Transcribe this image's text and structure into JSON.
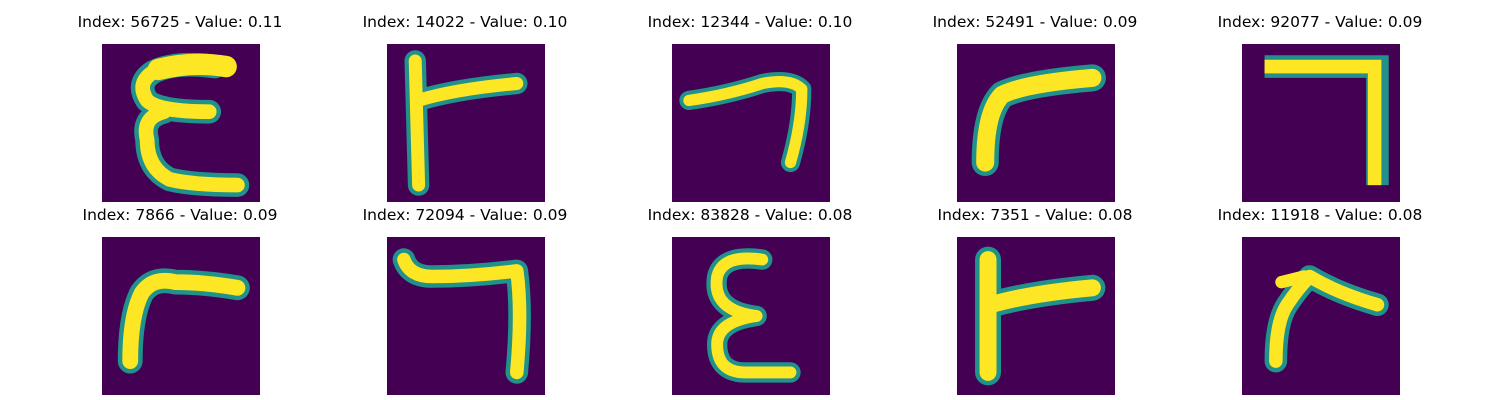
{
  "figure": {
    "background_color": "#ffffff",
    "image_background_color": "#440154",
    "stroke_core_color": "#fde725",
    "stroke_edge_color": "#21918c",
    "panels": [
      {
        "title": "Index: 56725 - Value: 0.11",
        "index": 56725,
        "value": 0.11,
        "glyph": "epsilon"
      },
      {
        "title": "Index: 14022 - Value: 0.10",
        "index": 14022,
        "value": 0.1,
        "glyph": "t-shape"
      },
      {
        "title": "Index: 12344 - Value: 0.10",
        "index": 12344,
        "value": 0.1,
        "glyph": "hook-seven"
      },
      {
        "title": "Index: 52491 - Value: 0.09",
        "index": 52491,
        "value": 0.09,
        "glyph": "gamma"
      },
      {
        "title": "Index: 92077 - Value: 0.09",
        "index": 92077,
        "value": 0.09,
        "glyph": "seven"
      },
      {
        "title": "Index: 7866 - Value: 0.09",
        "index": 7866,
        "value": 0.09,
        "glyph": "gamma"
      },
      {
        "title": "Index: 72094 - Value: 0.09",
        "index": 72094,
        "value": 0.09,
        "glyph": "seven-hook"
      },
      {
        "title": "Index: 83828 - Value: 0.08",
        "index": 83828,
        "value": 0.08,
        "glyph": "epsilon"
      },
      {
        "title": "Index: 7351 - Value: 0.08",
        "index": 7351,
        "value": 0.08,
        "glyph": "t-shape"
      },
      {
        "title": "Index: 11918 - Value: 0.08",
        "index": 11918,
        "value": 0.08,
        "glyph": "lambda-gamma"
      }
    ]
  }
}
